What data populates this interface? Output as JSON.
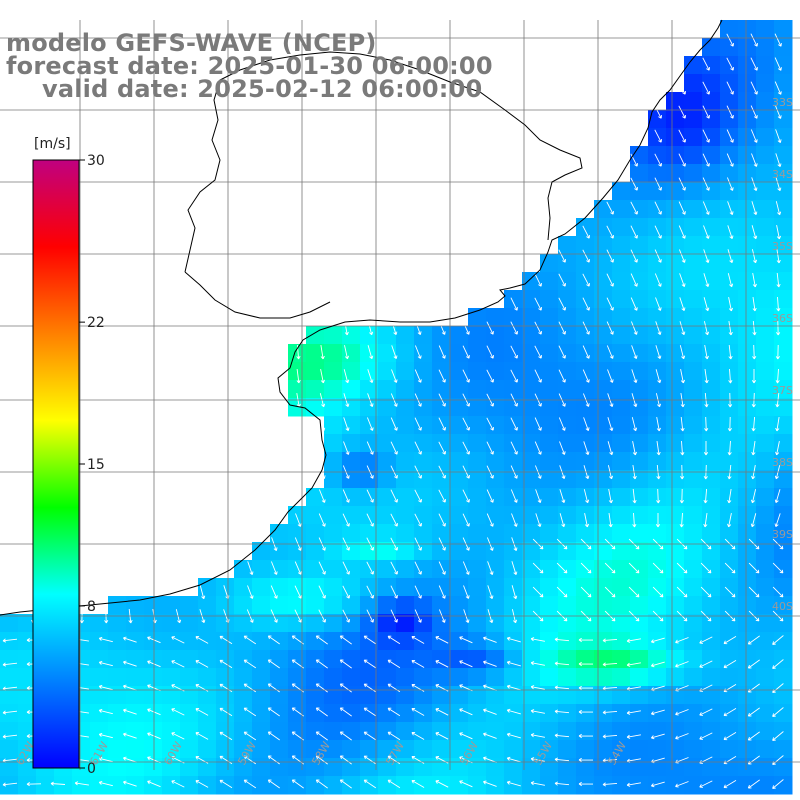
{
  "title": {
    "model": "modelo GEFS-WAVE (NCEP)",
    "forecast": "forecast date: 2025-01-30 06:00:00",
    "valid": "valid date: 2025-02-12 06:00:00"
  },
  "colorbar": {
    "units": "[m/s]",
    "ticks": [
      {
        "label": "30",
        "value": 30
      },
      {
        "label": "22",
        "value": 22
      },
      {
        "label": "15",
        "value": 15
      },
      {
        "label": "8",
        "value": 8
      },
      {
        "label": "0",
        "value": 0
      }
    ],
    "range": [
      0,
      30
    ],
    "colors": [
      "#0000ff",
      "#0080ff",
      "#00ffff",
      "#00ff00",
      "#ffff00",
      "#ff8000",
      "#ff0000",
      "#c00080"
    ]
  },
  "lat_labels": [
    "33S",
    "34S",
    "35S",
    "36S",
    "37S",
    "38S",
    "39S",
    "40S"
  ],
  "lon_labels": [
    "62W",
    "61W",
    "60W",
    "59W",
    "58W",
    "57W",
    "56W",
    "55W",
    "54W"
  ],
  "map_colors": {
    "land": "#ffffff",
    "coast": "#000000",
    "grid": "#777777",
    "arrow": "#ffffff"
  }
}
